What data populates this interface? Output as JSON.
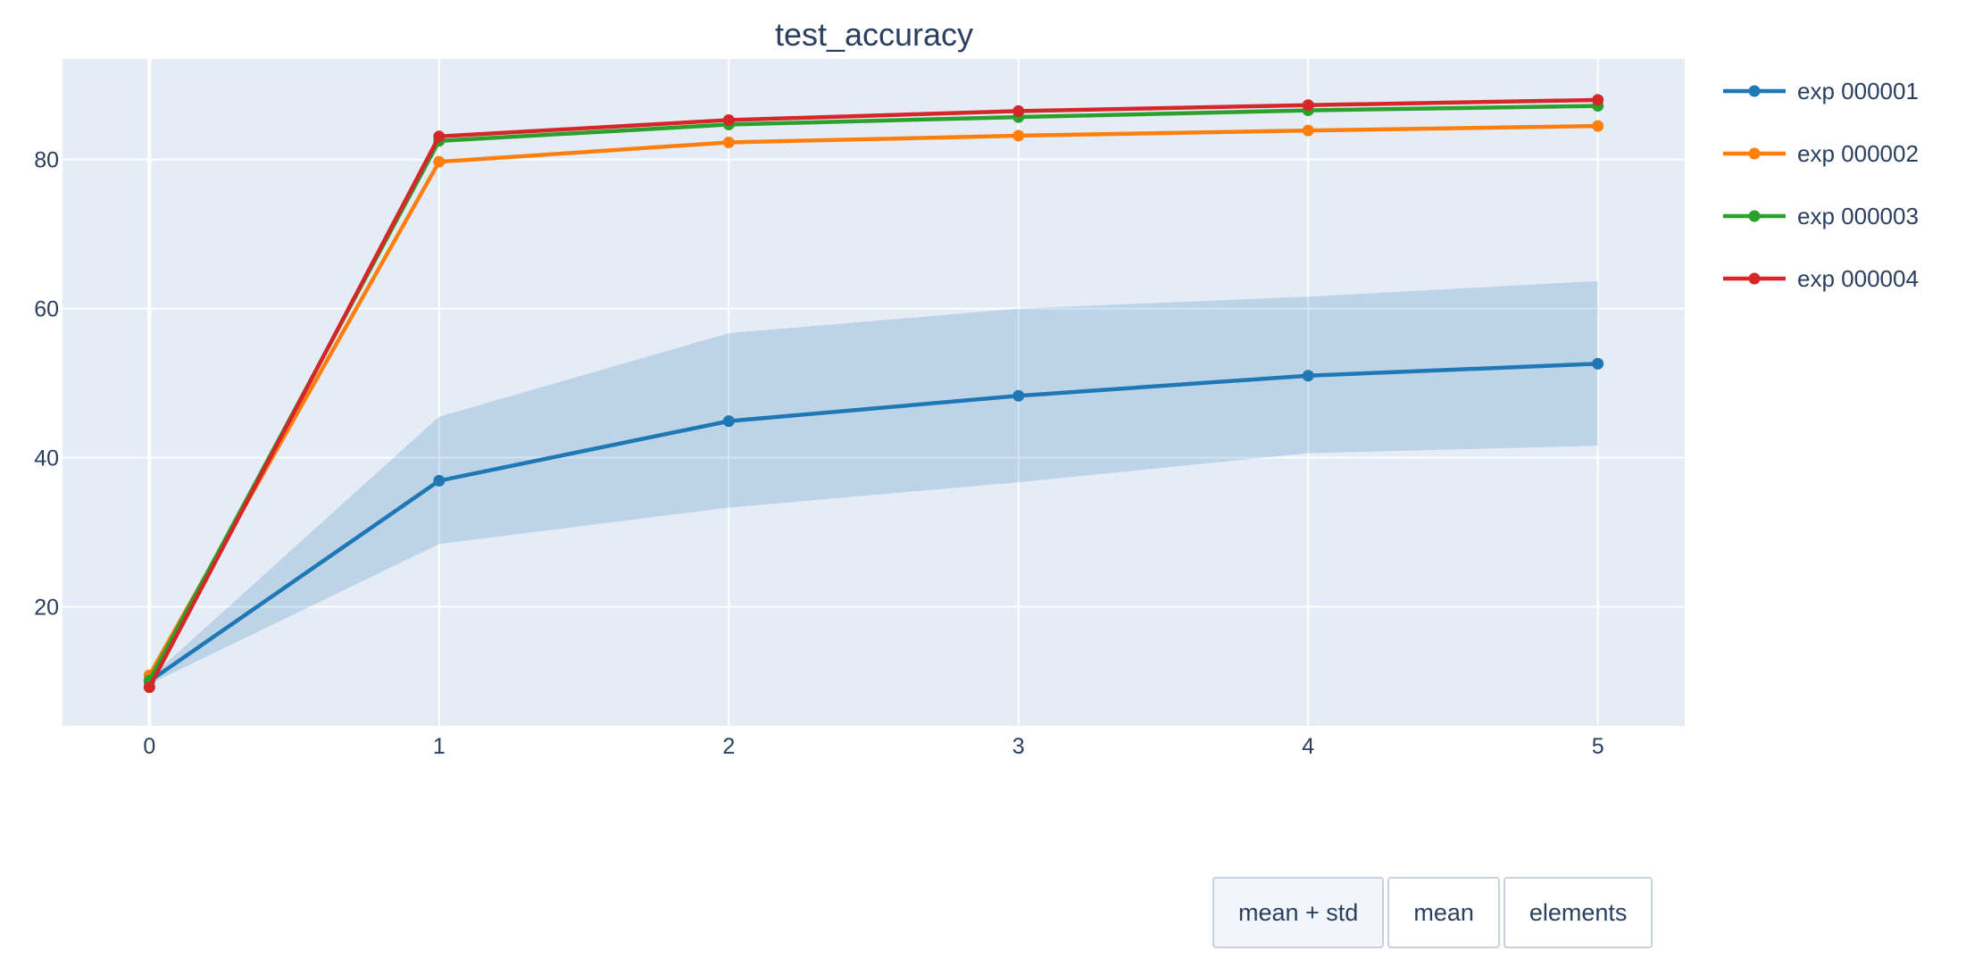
{
  "chart_data": {
    "type": "line",
    "title": "test_accuracy",
    "xlabel": "",
    "ylabel": "",
    "x": [
      0,
      1,
      2,
      3,
      4,
      5
    ],
    "xlim": [
      -0.3,
      5.3
    ],
    "ylim": [
      4,
      93.5
    ],
    "x_ticks": [
      "0",
      "1",
      "2",
      "3",
      "4",
      "5"
    ],
    "y_ticks": [
      "20",
      "40",
      "60",
      "80"
    ],
    "grid": true,
    "legend_position": "right",
    "series": [
      {
        "name": "exp 000001",
        "color": "#1f77b4",
        "values": [
          10.0,
          36.9,
          44.9,
          48.3,
          51.0,
          52.6
        ],
        "band_upper": [
          10.4,
          45.5,
          56.7,
          60.0,
          61.6,
          63.7
        ],
        "band_lower": [
          9.6,
          28.4,
          33.3,
          36.7,
          40.6,
          41.6
        ]
      },
      {
        "name": "exp 000002",
        "color": "#ff7f0e",
        "values": [
          10.8,
          79.7,
          82.3,
          83.2,
          83.9,
          84.5
        ]
      },
      {
        "name": "exp 000003",
        "color": "#2ca02c",
        "values": [
          10.1,
          82.5,
          84.7,
          85.7,
          86.6,
          87.2
        ]
      },
      {
        "name": "exp 000004",
        "color": "#d62728",
        "values": [
          9.2,
          83.1,
          85.3,
          86.5,
          87.3,
          88.0
        ]
      }
    ]
  },
  "controls": {
    "buttons": [
      {
        "label": "mean + std",
        "active": true
      },
      {
        "label": "mean",
        "active": false
      },
      {
        "label": "elements",
        "active": false
      }
    ]
  }
}
